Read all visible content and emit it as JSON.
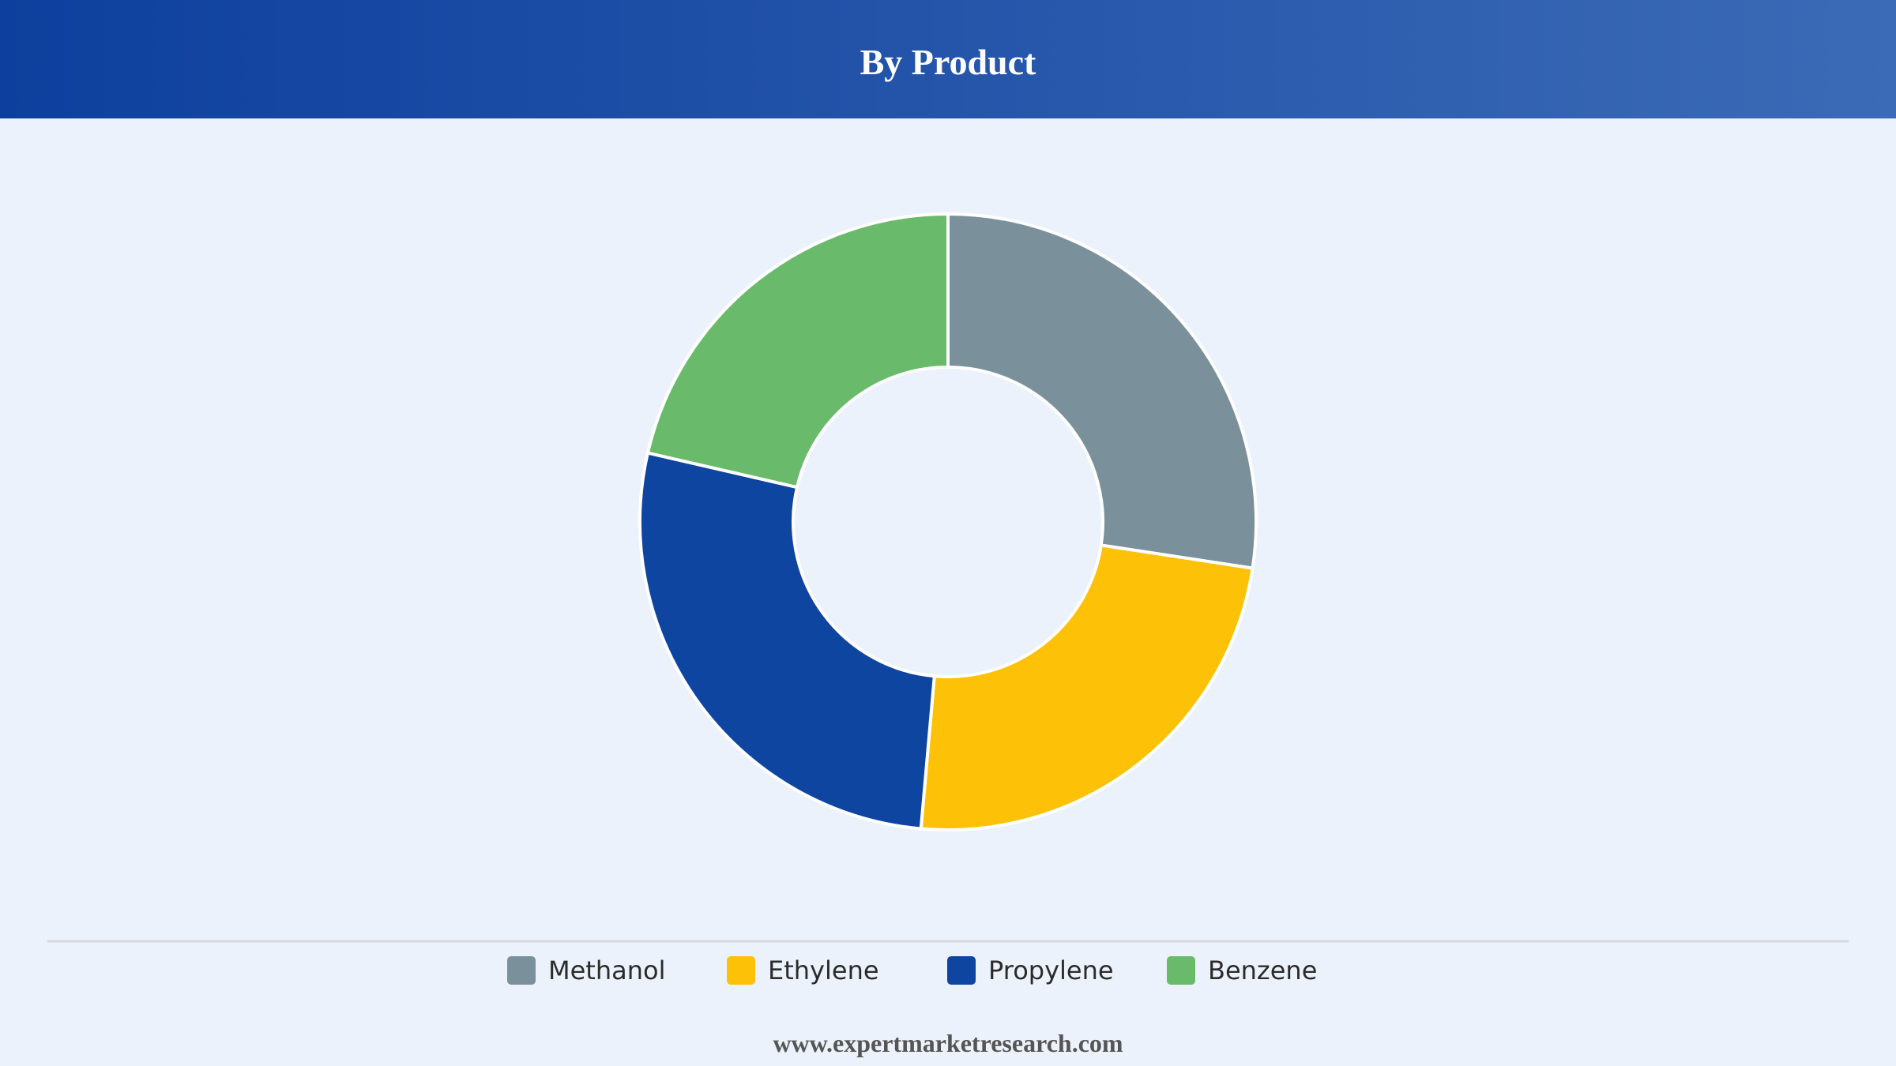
{
  "chart_data": {
    "type": "donut",
    "title": "By Product",
    "categories": [
      "Methanol",
      "Ethylene",
      "Propylene",
      "Benzene"
    ],
    "values": [
      27.4,
      24,
      27.2,
      21.4
    ],
    "colors": [
      "#7a919b",
      "#fdc107",
      "#0d45a0",
      "#69ba6b"
    ],
    "source": "www.expertmarketresearch.com"
  }
}
